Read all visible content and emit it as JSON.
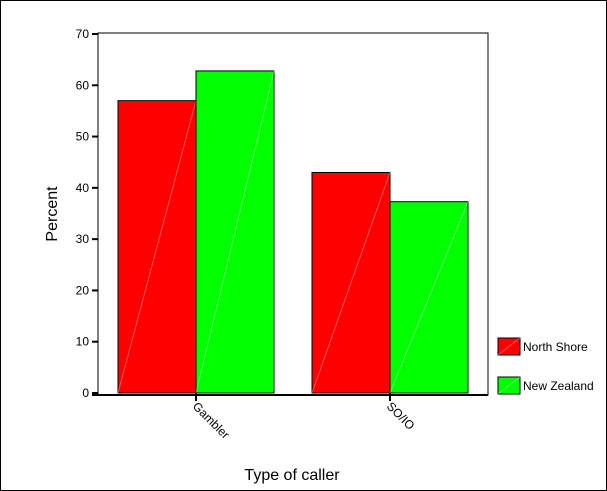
{
  "chart_data": {
    "type": "bar",
    "categories": [
      "Gambler",
      "SO/IO"
    ],
    "series": [
      {
        "name": "North Shore",
        "values": [
          57,
          43
        ],
        "color": "#ff0000"
      },
      {
        "name": "New Zealand",
        "values": [
          62.8,
          37.3
        ],
        "color": "#00ff00"
      }
    ],
    "xlabel": "Type of caller",
    "ylabel": "Percent",
    "ylim": [
      0,
      70
    ],
    "yticks": [
      0,
      10,
      20,
      30,
      40,
      50,
      60,
      70
    ],
    "grid": false,
    "legend_position": "right"
  }
}
